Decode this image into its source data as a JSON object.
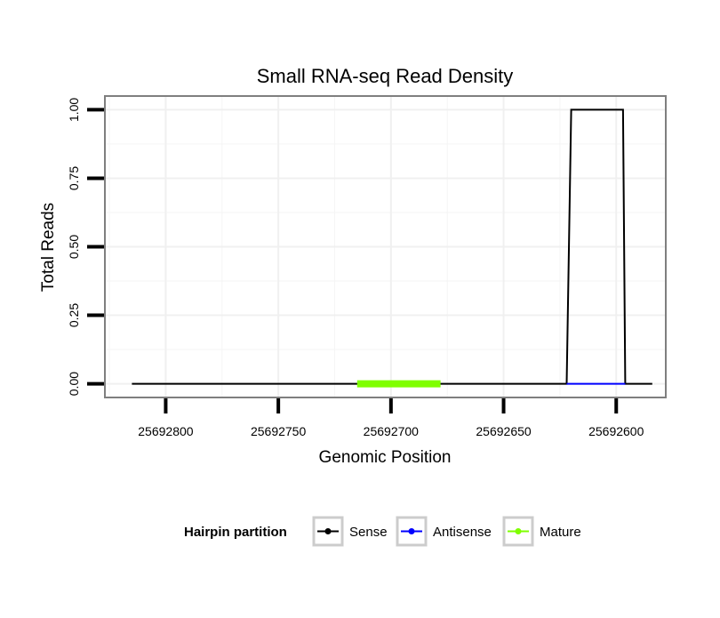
{
  "chart_data": {
    "type": "line",
    "title": "Small RNA-seq Read Density",
    "xlabel": "Genomic Position",
    "ylabel": "Total Reads",
    "x_reversed": true,
    "xlim": [
      25692827,
      25692578
    ],
    "ylim": [
      -0.05,
      1.05
    ],
    "x_ticks": [
      25692800,
      25692750,
      25692700,
      25692650,
      25692600
    ],
    "x_tick_labels": [
      "25692800",
      "25692750",
      "25692700",
      "25692650",
      "25692600"
    ],
    "y_ticks": [
      0,
      0.25,
      0.5,
      0.75,
      1.0
    ],
    "y_tick_labels": [
      "0.00",
      "0.25",
      "0.50",
      "0.75",
      "1.00"
    ],
    "grid": true,
    "series": [
      {
        "name": "Sense",
        "color": "#000000",
        "x": [
          25692815,
          25692622,
          25692620,
          25692597,
          25692596,
          25692584
        ],
        "y": [
          0,
          0,
          1,
          1,
          0,
          0
        ]
      },
      {
        "name": "Antisense",
        "color": "#0000ff",
        "x": [
          25692622,
          25692596
        ],
        "y": [
          0,
          0
        ]
      },
      {
        "name": "Mature",
        "color": "#7fff00",
        "x": [
          25692715,
          25692678
        ],
        "y": [
          0,
          0
        ]
      }
    ],
    "legend": {
      "title": "Hairpin partition",
      "position": "bottom",
      "entries": [
        "Sense",
        "Antisense",
        "Mature"
      ]
    }
  }
}
